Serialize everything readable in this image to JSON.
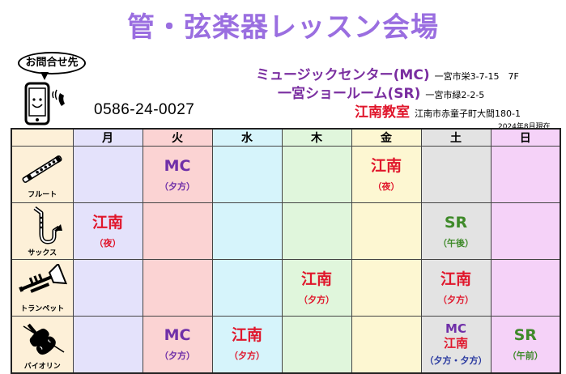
{
  "title": "管・弦楽器レッスン会場",
  "contact": {
    "label": "お問合せ先",
    "phone": "0586-24-0027"
  },
  "venues": [
    {
      "name": "ミュージックセンター(MC)",
      "address": "一宮市栄3-7-15　7F"
    },
    {
      "name": "一宮ショールーム(SR)",
      "address": "一宮市緑2-2-5"
    },
    {
      "name": "江南教室",
      "address": "江南市赤童子町大間180-1"
    }
  ],
  "as_of": "2024年8月現在",
  "colors": {
    "title": "#9a6ee0",
    "mc": "#6f2fa8",
    "konan": "#e0162b",
    "sr": "#3f8a2a",
    "day_mon": "#e4e2fb",
    "day_tue": "#fbd3d3",
    "day_wed": "#d6f4fb",
    "day_thu": "#e0f6dc",
    "day_fri": "#fdf7d2",
    "day_sat": "#e3e3e3",
    "day_sun": "#f5d2f8",
    "instrument_bg": "#fdf0d8"
  },
  "schedule": {
    "days": [
      "月",
      "火",
      "水",
      "木",
      "金",
      "土",
      "日"
    ],
    "instruments": [
      {
        "name": "フルート",
        "icon": "flute-icon",
        "cells": [
          [],
          [
            {
              "t": "MC",
              "c": "mc"
            },
            {
              "t": "（夕方）",
              "c": "tm mc"
            }
          ],
          [],
          [],
          [
            {
              "t": "江南",
              "c": "koh"
            },
            {
              "t": "（夜）",
              "c": "tm koh"
            }
          ],
          [],
          []
        ]
      },
      {
        "name": "サックス",
        "icon": "saxophone-icon",
        "cells": [
          [
            {
              "t": "江南",
              "c": "koh"
            },
            {
              "t": "（夜）",
              "c": "tm koh"
            }
          ],
          [],
          [],
          [],
          [],
          [
            {
              "t": "SR",
              "c": "sr"
            },
            {
              "t": "（午後）",
              "c": "tm sr"
            }
          ],
          []
        ]
      },
      {
        "name": "トランペット",
        "icon": "trumpet-icon",
        "cells": [
          [],
          [],
          [],
          [
            {
              "t": "江南",
              "c": "koh"
            },
            {
              "t": "（夕方）",
              "c": "tm koh"
            }
          ],
          [],
          [
            {
              "t": "江南",
              "c": "koh"
            },
            {
              "t": "（夕方）",
              "c": "tm koh"
            }
          ],
          []
        ]
      },
      {
        "name": "バイオリン",
        "icon": "violin-icon",
        "cells": [
          [],
          [
            {
              "t": "MC",
              "c": "mc"
            },
            {
              "t": "（夕方）",
              "c": "tm mc"
            }
          ],
          [
            {
              "t": "江南",
              "c": "koh"
            },
            {
              "t": "（夕方）",
              "c": "tm koh"
            }
          ],
          [],
          [],
          [
            {
              "t": "MC",
              "c": "mc"
            },
            {
              "t": "江南",
              "c": "koh"
            },
            {
              "t": "（夕方・夕方）",
              "c": "tm mix"
            }
          ],
          [
            {
              "t": "SR",
              "c": "sr"
            },
            {
              "t": "（午前）",
              "c": "tm sr"
            }
          ]
        ]
      }
    ]
  }
}
